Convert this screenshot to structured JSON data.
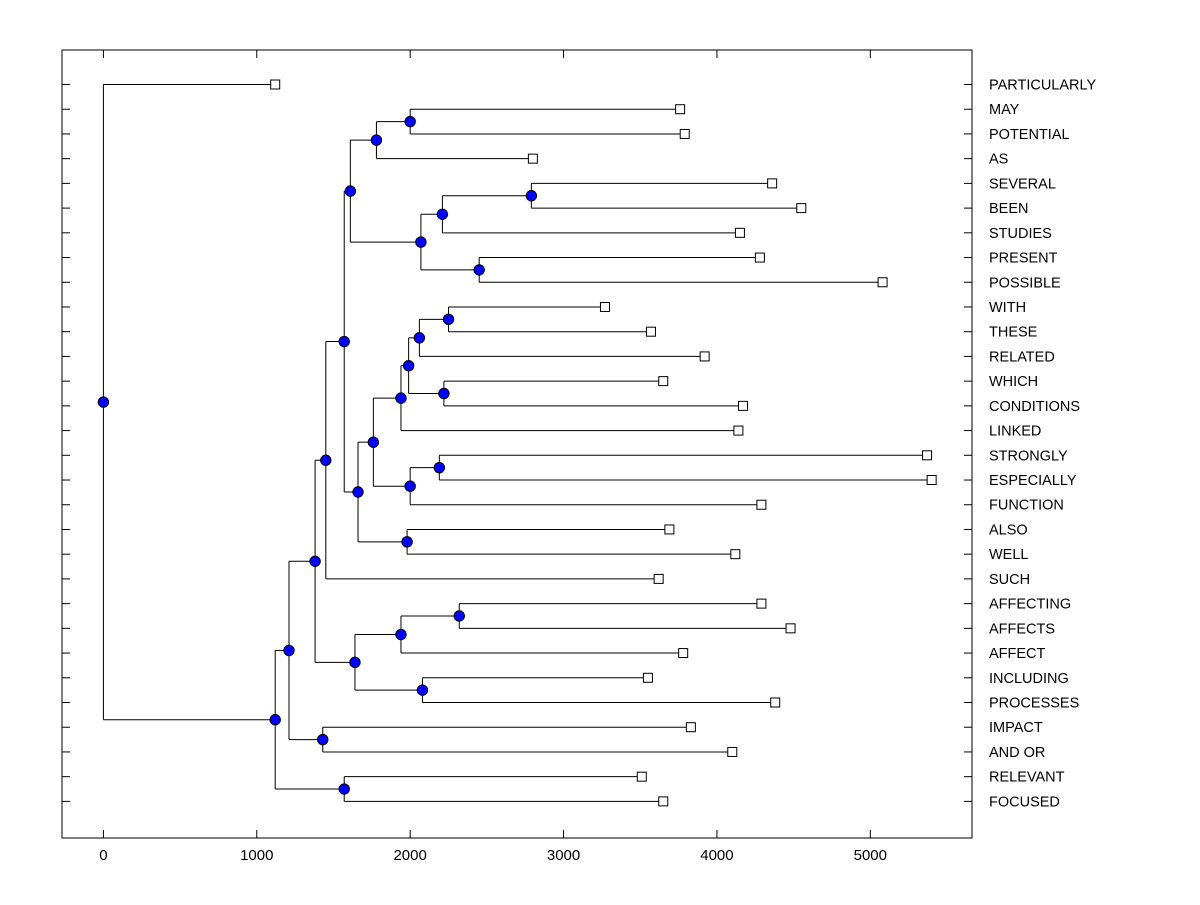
{
  "figure": {
    "background": "#ffffff",
    "box_color": "#000000",
    "branch_color": "#000000",
    "leaf_marker": {
      "shape": "square",
      "fill": "#ffffff",
      "stroke": "#000000",
      "size": 9
    },
    "node_marker": {
      "shape": "circle",
      "fill": "#0000ff",
      "stroke": "#000000",
      "radius": 5.2
    }
  },
  "chart_data": {
    "type": "dendrogram",
    "subtype": "phylogenetic-tree",
    "orientation": "horizontal-root-left",
    "title": "",
    "xlabel": "",
    "ylabel": "",
    "x_axis": {
      "ticks": [
        0,
        1000,
        2000,
        3000,
        4000,
        5000
      ],
      "range": [
        -270,
        5663
      ],
      "grid": false
    },
    "legend": null,
    "leaves": [
      {
        "label": "PARTICULARLY",
        "distance": 1120
      },
      {
        "label": "MAY",
        "distance": 3760
      },
      {
        "label": "POTENTIAL",
        "distance": 3790
      },
      {
        "label": "AS",
        "distance": 2800
      },
      {
        "label": "SEVERAL",
        "distance": 4360
      },
      {
        "label": "BEEN",
        "distance": 4550
      },
      {
        "label": "STUDIES",
        "distance": 4150
      },
      {
        "label": "PRESENT",
        "distance": 4280
      },
      {
        "label": "POSSIBLE",
        "distance": 5080
      },
      {
        "label": "WITH",
        "distance": 3270
      },
      {
        "label": "THESE",
        "distance": 3570
      },
      {
        "label": "RELATED",
        "distance": 3920
      },
      {
        "label": "WHICH",
        "distance": 3650
      },
      {
        "label": "CONDITIONS",
        "distance": 4170
      },
      {
        "label": "LINKED",
        "distance": 4140
      },
      {
        "label": "STRONGLY",
        "distance": 5370
      },
      {
        "label": "ESPECIALLY",
        "distance": 5400
      },
      {
        "label": "FUNCTION",
        "distance": 4290
      },
      {
        "label": "ALSO",
        "distance": 3690
      },
      {
        "label": "WELL",
        "distance": 4120
      },
      {
        "label": "SUCH",
        "distance": 3620
      },
      {
        "label": "AFFECTING",
        "distance": 4290
      },
      {
        "label": "AFFECTS",
        "distance": 4480
      },
      {
        "label": "AFFECT",
        "distance": 3780
      },
      {
        "label": "INCLUDING",
        "distance": 3550
      },
      {
        "label": "PROCESSES",
        "distance": 4380
      },
      {
        "label": "IMPACT",
        "distance": 3830
      },
      {
        "label": "AND OR",
        "distance": 4100
      },
      {
        "label": "RELEVANT",
        "distance": 3510
      },
      {
        "label": "FOCUSED",
        "distance": 3650
      }
    ],
    "tree": {
      "d": 0,
      "c": [
        {
          "leaf": "PARTICULARLY"
        },
        {
          "d": 1120,
          "c": [
            {
              "d": 1210,
              "c": [
                {
                  "d": 1380,
                  "c": [
                    {
                      "d": 1450,
                      "c": [
                        {
                          "d": 1570,
                          "c": [
                            {
                              "d": 1610,
                              "c": [
                                {
                                  "d": 1780,
                                  "c": [
                                    {
                                      "d": 2000,
                                      "c": [
                                        {
                                          "leaf": "MAY"
                                        },
                                        {
                                          "leaf": "POTENTIAL"
                                        }
                                      ]
                                    },
                                    {
                                      "leaf": "AS"
                                    }
                                  ]
                                },
                                {
                                  "d": 2070,
                                  "c": [
                                    {
                                      "d": 2210,
                                      "c": [
                                        {
                                          "d": 2790,
                                          "c": [
                                            {
                                              "leaf": "SEVERAL"
                                            },
                                            {
                                              "leaf": "BEEN"
                                            }
                                          ]
                                        },
                                        {
                                          "leaf": "STUDIES"
                                        }
                                      ]
                                    },
                                    {
                                      "d": 2450,
                                      "c": [
                                        {
                                          "leaf": "PRESENT"
                                        },
                                        {
                                          "leaf": "POSSIBLE"
                                        }
                                      ]
                                    }
                                  ]
                                }
                              ]
                            },
                            {
                              "d": 1660,
                              "c": [
                                {
                                  "d": 1760,
                                  "c": [
                                    {
                                      "d": 1940,
                                      "c": [
                                        {
                                          "d": 1990,
                                          "c": [
                                            {
                                              "d": 2060,
                                              "c": [
                                                {
                                                  "d": 2250,
                                                  "c": [
                                                    {
                                                      "leaf": "WITH"
                                                    },
                                                    {
                                                      "leaf": "THESE"
                                                    }
                                                  ]
                                                },
                                                {
                                                  "leaf": "RELATED"
                                                }
                                              ]
                                            },
                                            {
                                              "d": 2220,
                                              "c": [
                                                {
                                                  "leaf": "WHICH"
                                                },
                                                {
                                                  "leaf": "CONDITIONS"
                                                }
                                              ]
                                            }
                                          ]
                                        },
                                        {
                                          "leaf": "LINKED"
                                        }
                                      ]
                                    },
                                    {
                                      "d": 2000,
                                      "c": [
                                        {
                                          "d": 2190,
                                          "c": [
                                            {
                                              "leaf": "STRONGLY"
                                            },
                                            {
                                              "leaf": "ESPECIALLY"
                                            }
                                          ]
                                        },
                                        {
                                          "leaf": "FUNCTION"
                                        }
                                      ]
                                    }
                                  ]
                                },
                                {
                                  "d": 1980,
                                  "c": [
                                    {
                                      "leaf": "ALSO"
                                    },
                                    {
                                      "leaf": "WELL"
                                    }
                                  ]
                                }
                              ]
                            }
                          ]
                        },
                        {
                          "leaf": "SUCH"
                        }
                      ]
                    },
                    {
                      "d": 1640,
                      "c": [
                        {
                          "d": 1940,
                          "c": [
                            {
                              "d": 2320,
                              "c": [
                                {
                                  "leaf": "AFFECTING"
                                },
                                {
                                  "leaf": "AFFECTS"
                                }
                              ]
                            },
                            {
                              "leaf": "AFFECT"
                            }
                          ]
                        },
                        {
                          "d": 2080,
                          "c": [
                            {
                              "leaf": "INCLUDING"
                            },
                            {
                              "leaf": "PROCESSES"
                            }
                          ]
                        }
                      ]
                    }
                  ]
                },
                {
                  "d": 1430,
                  "c": [
                    {
                      "leaf": "IMPACT"
                    },
                    {
                      "leaf": "AND OR"
                    }
                  ]
                }
              ]
            },
            {
              "d": 1570,
              "c": [
                {
                  "leaf": "RELEVANT"
                },
                {
                  "leaf": "FOCUSED"
                }
              ]
            }
          ]
        }
      ]
    }
  }
}
